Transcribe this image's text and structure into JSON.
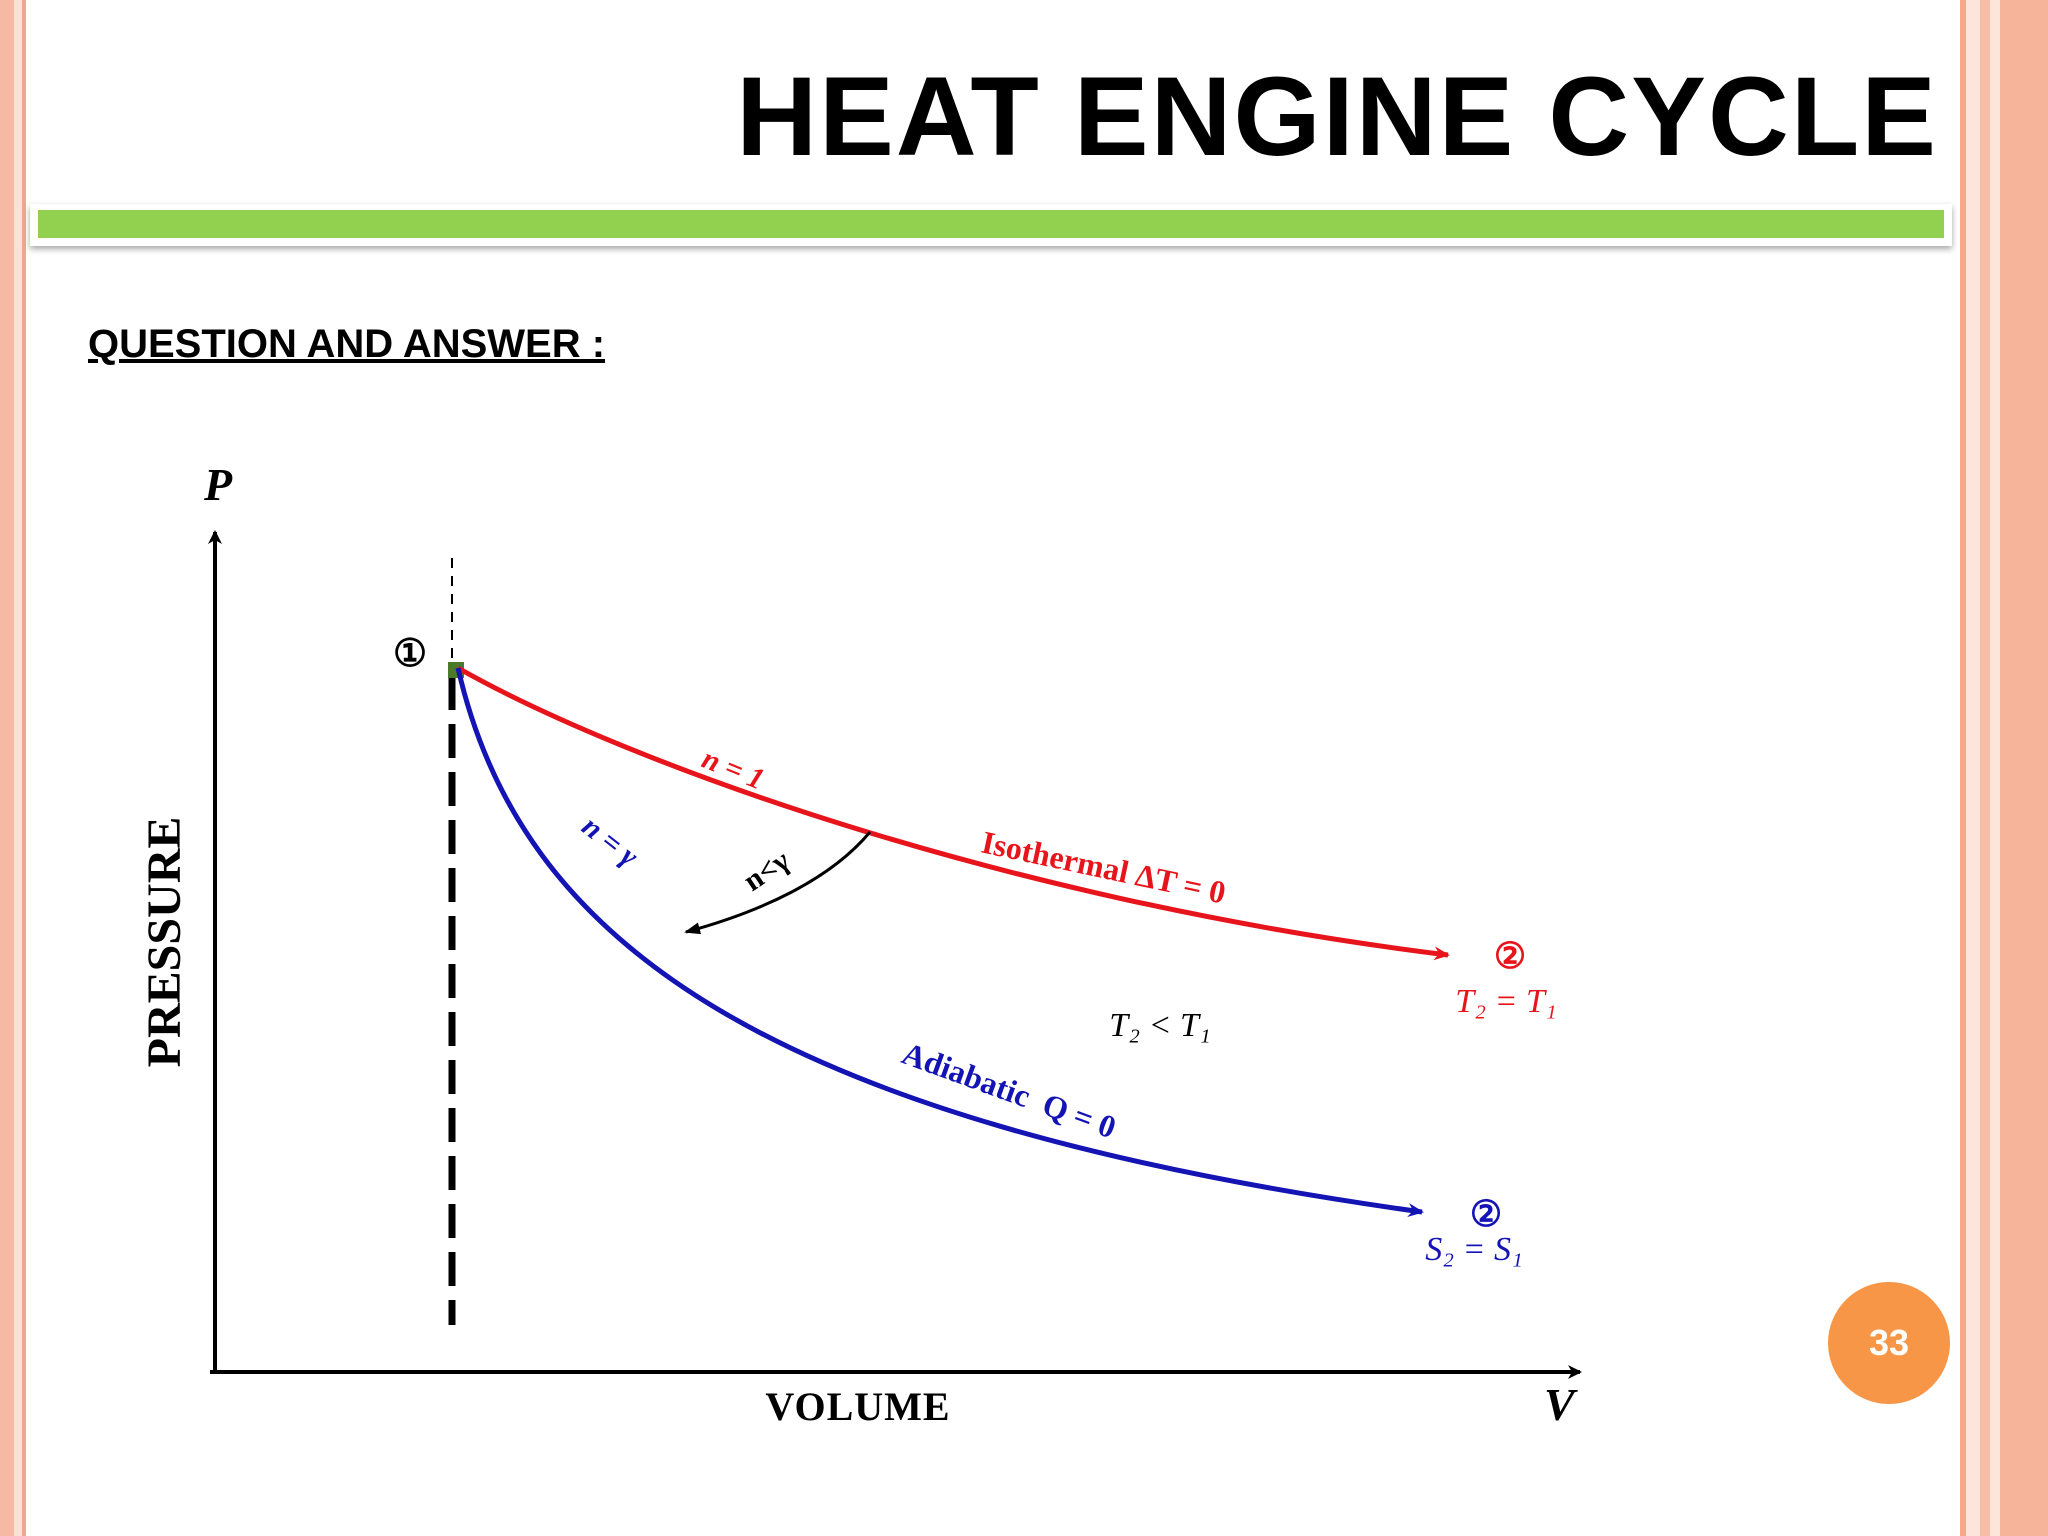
{
  "slide": {
    "title": "HEAT ENGINE CYCLE",
    "subheading": "QUESTION AND ANSWER :",
    "page_number": "33",
    "colors": {
      "accent_bar": "#92d050",
      "page_badge": "#f79646",
      "frame": "#f6b9a3"
    }
  },
  "diagram": {
    "y_axis_symbol": "P",
    "x_axis_symbol": "V",
    "y_axis_label": "PRESSURE",
    "x_axis_label": "VOLUME",
    "start_point": "①",
    "isothermal": {
      "color": "#e8141c",
      "index": "n = 1",
      "label": "Isothermal ΔT = 0",
      "end_point": "②",
      "end_condition": "T₂ = T₁"
    },
    "adiabatic": {
      "color": "#1414b4",
      "index": "n = γ",
      "label": "Adiabatic  Q = 0",
      "end_point": "②",
      "end_condition": "S₂ = S₁"
    },
    "polytropic_note": "n<γ",
    "temperature_relation": "T₂ < T₁"
  }
}
